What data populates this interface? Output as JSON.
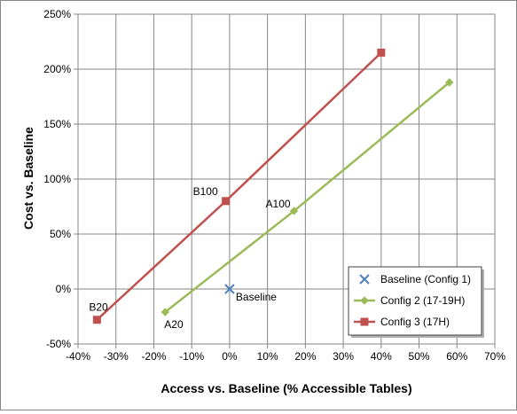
{
  "chart_data": {
    "type": "scatter",
    "title": "",
    "xlabel": "Access vs. Baseline (% Accessible Tables)",
    "ylabel": "Cost vs. Baseline",
    "xlim": [
      -40,
      70
    ],
    "ylim": [
      -50,
      250
    ],
    "x_ticks": [
      -40,
      -30,
      -20,
      -10,
      0,
      10,
      20,
      30,
      40,
      50,
      60,
      70
    ],
    "y_ticks": [
      -50,
      0,
      50,
      100,
      150,
      200,
      250
    ],
    "x_tick_labels": [
      "-40%",
      "-30%",
      "-20%",
      "-10%",
      "0%",
      "10%",
      "20%",
      "30%",
      "40%",
      "50%",
      "60%",
      "70%"
    ],
    "y_tick_labels": [
      "-50%",
      "0%",
      "50%",
      "100%",
      "150%",
      "200%",
      "250%"
    ],
    "grid": "vertical and horizontal",
    "legend_position": "bottom-right",
    "series": [
      {
        "name": "Baseline (Config 1)",
        "color": "#4F81BD",
        "marker": "x",
        "line": false,
        "points": [
          {
            "x": 0,
            "y": 0,
            "label": "Baseline"
          }
        ]
      },
      {
        "name": "Config 2 (17-19H)",
        "color": "#9BBB59",
        "marker": "diamond",
        "line": true,
        "points": [
          {
            "x": -17,
            "y": -21,
            "label": "A20"
          },
          {
            "x": 17,
            "y": 71,
            "label": "A100"
          },
          {
            "x": 58,
            "y": 188,
            "label": ""
          }
        ]
      },
      {
        "name": "Config 3 (17H)",
        "color": "#C0504D",
        "marker": "square",
        "line": true,
        "points": [
          {
            "x": -35,
            "y": -28,
            "label": "B20"
          },
          {
            "x": -1,
            "y": 80,
            "label": "B100"
          },
          {
            "x": 40,
            "y": 215,
            "label": ""
          }
        ]
      }
    ]
  }
}
